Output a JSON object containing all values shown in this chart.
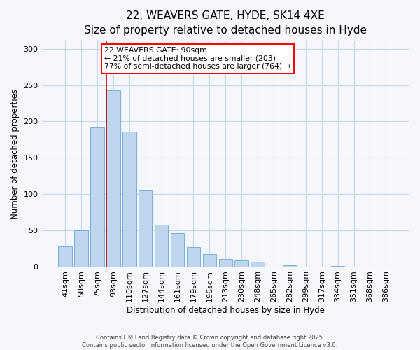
{
  "title": "22, WEAVERS GATE, HYDE, SK14 4XE",
  "subtitle": "Size of property relative to detached houses in Hyde",
  "xlabel": "Distribution of detached houses by size in Hyde",
  "ylabel": "Number of detached properties",
  "categories": [
    "41sqm",
    "58sqm",
    "75sqm",
    "93sqm",
    "110sqm",
    "127sqm",
    "144sqm",
    "161sqm",
    "179sqm",
    "196sqm",
    "213sqm",
    "230sqm",
    "248sqm",
    "265sqm",
    "282sqm",
    "299sqm",
    "317sqm",
    "334sqm",
    "351sqm",
    "368sqm",
    "386sqm"
  ],
  "values": [
    28,
    50,
    192,
    243,
    186,
    105,
    58,
    47,
    27,
    18,
    11,
    9,
    7,
    0,
    2,
    0,
    0,
    1,
    0,
    0,
    0
  ],
  "bar_color": "#bdd5ee",
  "bar_edge_color": "#7aafd4",
  "vline_color": "#cc0000",
  "vline_index": 3,
  "annotation_box_text": "22 WEAVERS GATE: 90sqm\n← 21% of detached houses are smaller (203)\n77% of semi-detached houses are larger (764) →",
  "ylim": [
    0,
    310
  ],
  "yticks": [
    0,
    50,
    100,
    150,
    200,
    250,
    300
  ],
  "footer_line1": "Contains HM Land Registry data © Crown copyright and database right 2025.",
  "footer_line2": "Contains public sector information licensed under the Open Government Licence v3.0.",
  "background_color": "#f5f7fd",
  "grid_color": "#c8d4e8",
  "title_fontsize": 11,
  "subtitle_fontsize": 9.5,
  "axis_label_fontsize": 8.5,
  "tick_fontsize": 8,
  "annotation_fontsize": 7.8,
  "footer_fontsize": 6.0
}
